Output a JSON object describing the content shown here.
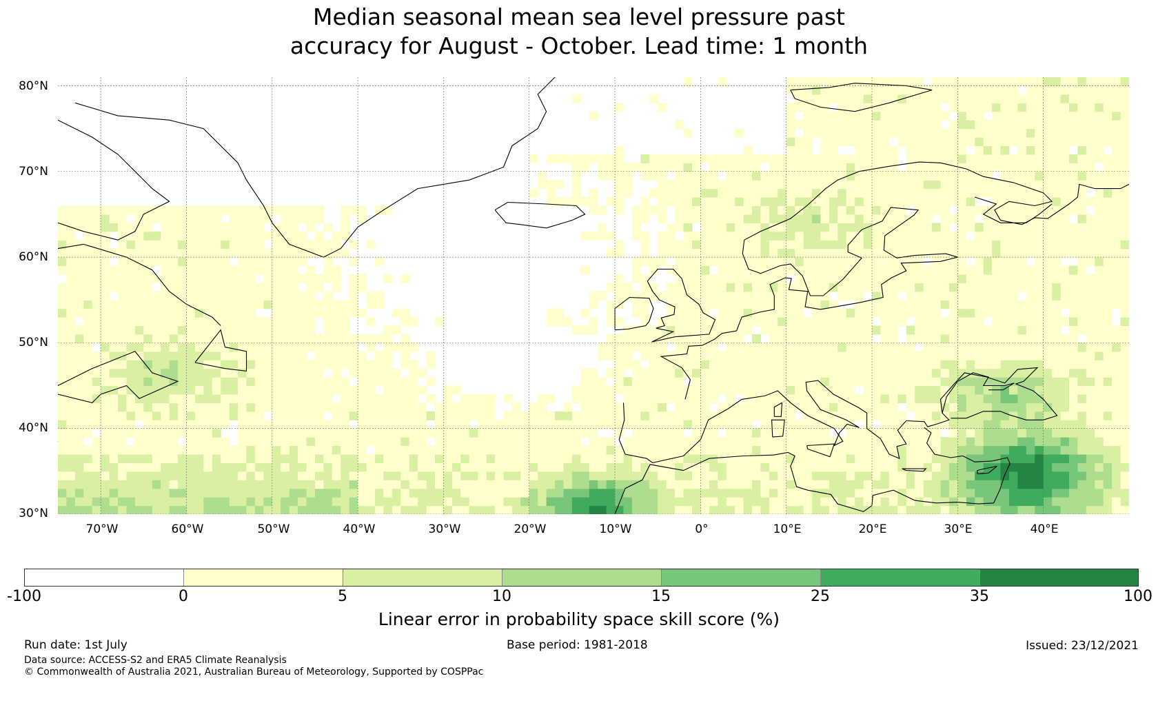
{
  "title_lines": [
    "Median seasonal mean sea level pressure past",
    "accuracy for August - October. Lead time: 1 month"
  ],
  "map": {
    "lat_labels": [
      "80°N",
      "70°N",
      "60°N",
      "50°N",
      "40°N",
      "30°N"
    ],
    "lon_labels": [
      "70°W",
      "60°W",
      "50°W",
      "40°W",
      "30°W",
      "20°W",
      "10°W",
      "0°",
      "10°E",
      "20°E",
      "30°E",
      "40°E"
    ]
  },
  "colorbar": {
    "ticks": [
      "-100",
      "0",
      "5",
      "10",
      "15",
      "25",
      "35",
      "100"
    ],
    "colors": [
      "#ffffff",
      "#ffffcc",
      "#d9f0a3",
      "#addd8e",
      "#78c679",
      "#41ab5d",
      "#238443"
    ],
    "label": "Linear error in probability space skill score (%)"
  },
  "footer": {
    "run_date": "Run date: 1st July",
    "base_period": "Base period: 1981-2018",
    "issued": "Issued: 23/12/2021",
    "data_source": "Data source: ACCESS-S2 and ERA5 Climate Reanalysis",
    "copyright": "© Commonwealth of Australia 2021, Australian Bureau of Meteorology, Supported by COSPPac"
  }
}
